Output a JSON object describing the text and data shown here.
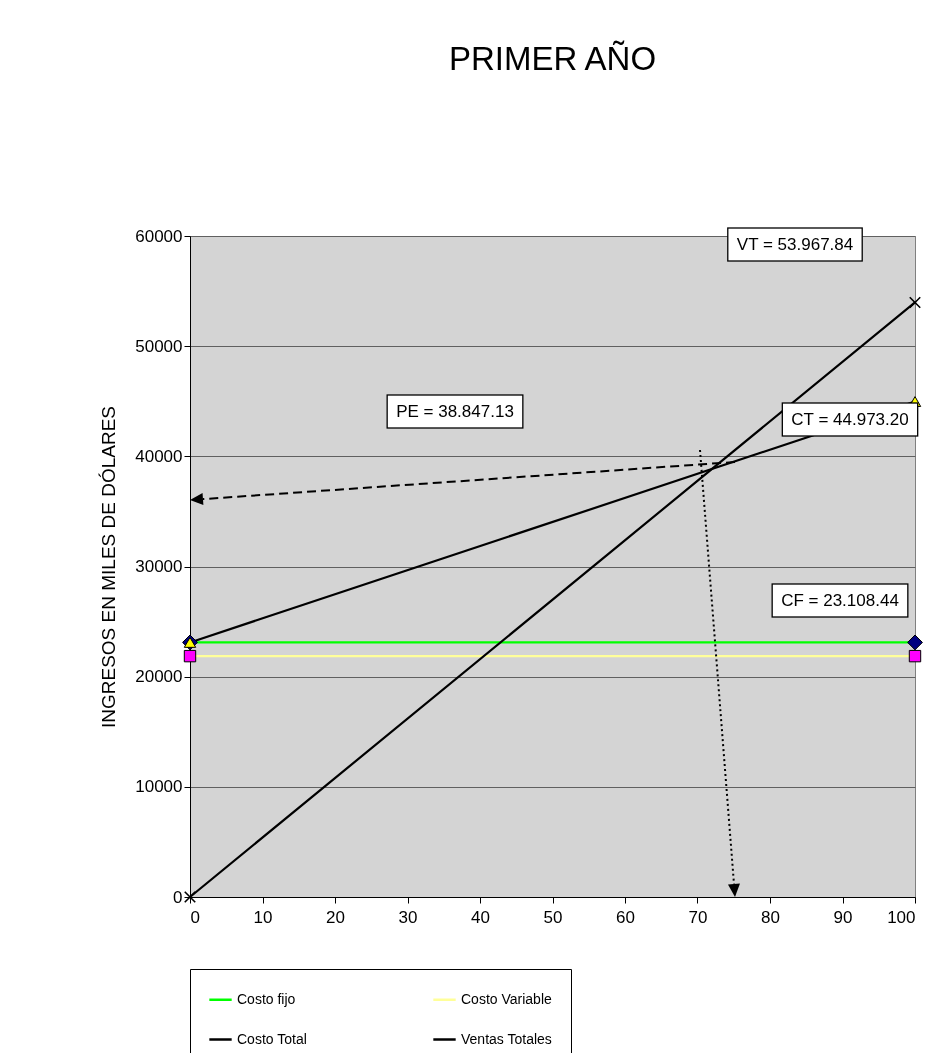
{
  "chart_data": {
    "type": "line",
    "title": "PRIMER AÑO",
    "ylabel": "INGRESOS EN MILES DE DÓLARES",
    "xlim": [
      0,
      100
    ],
    "xticks": [
      0,
      10,
      20,
      30,
      40,
      50,
      60,
      70,
      80,
      90,
      100
    ],
    "ylim": [
      0,
      60000
    ],
    "yticks": [
      0,
      10000,
      20000,
      30000,
      40000,
      50000,
      60000
    ],
    "grid": "y",
    "legend": "bottom",
    "x": [
      0,
      100
    ],
    "series": [
      {
        "name": "Costo fijo",
        "color": "#00ff00",
        "marker": "diamond",
        "colors": [
          "#000080",
          "#000080"
        ],
        "values": [
          23108.44,
          23108.44
        ]
      },
      {
        "name": "Costo Variable",
        "color": "#ffff99",
        "marker": "square",
        "colors": [
          "#ff00ff",
          "#ff00ff"
        ],
        "values": [
          21864.76,
          21864.76
        ]
      },
      {
        "name": "Costo Total",
        "color": "#000000",
        "marker": "triangle",
        "colors": [
          "#ffff00",
          "#ffff00"
        ],
        "values": [
          23108.44,
          44973.2
        ]
      },
      {
        "name": "Ventas Totales",
        "color": "#000000",
        "marker": "cross",
        "colors": [
          "#000000",
          "#000000"
        ],
        "values": [
          0,
          53967.84
        ]
      }
    ],
    "annotations": [
      "VT = 53.967.84",
      "CT = 44.973.20",
      "PE = 38.847.13",
      "CF = 23.108.44"
    ]
  }
}
